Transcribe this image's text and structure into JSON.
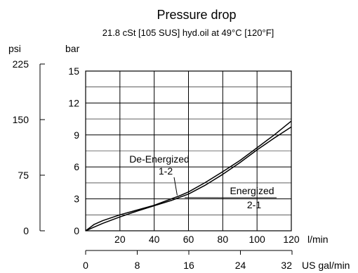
{
  "chart_data": {
    "type": "line",
    "title": "Pressure drop",
    "subtitle": "21.8 cSt [105 SUS] hyd.oil at 49°C [120°F]",
    "xlabel": "l/min",
    "ylabel": "bar",
    "xlim": [
      0,
      120
    ],
    "ylim": [
      0,
      15
    ],
    "x_ticks": [
      0,
      20,
      40,
      60,
      80,
      100,
      120
    ],
    "y_ticks": [
      0,
      3,
      6,
      9,
      12,
      15
    ],
    "grid": true,
    "secondary_x_axis": {
      "label": "US gal/min",
      "ticks": [
        0,
        8,
        16,
        24,
        32
      ],
      "range": [
        0,
        32
      ]
    },
    "secondary_y_axis": {
      "label": "psi",
      "ticks": [
        0,
        75,
        150,
        225
      ],
      "range": [
        0,
        225
      ]
    },
    "series": [
      {
        "name": "De-Energized 1-2",
        "x": [
          0,
          5,
          10,
          20,
          30,
          40,
          50,
          55,
          60,
          70,
          80,
          90,
          100,
          110,
          120
        ],
        "y": [
          0,
          0.6,
          0.95,
          1.5,
          1.95,
          2.4,
          3.0,
          3.3,
          3.65,
          4.55,
          5.55,
          6.6,
          7.8,
          9.0,
          10.3
        ]
      },
      {
        "name": "Energized 2-1",
        "x": [
          0,
          5,
          10,
          20,
          30,
          40,
          50,
          55,
          60,
          70,
          80,
          90,
          100,
          110,
          120
        ],
        "y": [
          0,
          0.35,
          0.7,
          1.3,
          1.85,
          2.35,
          2.85,
          3.15,
          3.45,
          4.3,
          5.3,
          6.4,
          7.6,
          8.7,
          9.75
        ]
      }
    ],
    "annotations": [
      {
        "lines": [
          "De-Energized",
          "1-2"
        ],
        "series": "De-Energized 1-2"
      },
      {
        "lines": [
          "Energized",
          "2-1"
        ],
        "series": "Energized 2-1"
      }
    ]
  }
}
